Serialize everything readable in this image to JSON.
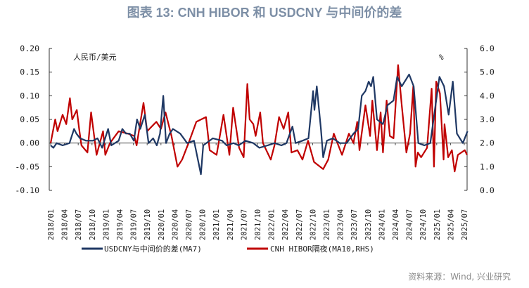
{
  "title": "图表 13: CNH HIBOR 和 USDCNY 与中间价的差",
  "source": "资料来源：Wind, 兴业研究",
  "chart_data": {
    "type": "line",
    "title": "图表 13: CNH HIBOR 和 USDCNY 与中间价的差",
    "left_axis": {
      "label": "人民币/美元",
      "ylim": [
        -0.1,
        0.2
      ],
      "ticks": [
        "0.20",
        "0.15",
        "0.10",
        "0.05",
        "0.00",
        "-0.05",
        "-0.10"
      ]
    },
    "right_axis": {
      "label": "%",
      "ylim": [
        0.0,
        6.0
      ],
      "ticks": [
        "6.0",
        "5.0",
        "4.0",
        "3.0",
        "2.0",
        "1.0",
        "0.0"
      ]
    },
    "x_ticks": [
      "2018/01",
      "2018/04",
      "2018/07",
      "2018/10",
      "2019/01",
      "2019/04",
      "2019/07",
      "2019/10",
      "2020/01",
      "2020/04",
      "2020/07",
      "2020/10",
      "2021/01",
      "2021/04",
      "2021/07",
      "2021/10",
      "2022/01",
      "2022/04",
      "2022/07",
      "2022/10",
      "2023/01",
      "2023/04",
      "2023/07",
      "2023/10",
      "2024/01",
      "2024/04",
      "2024/07",
      "2024/10",
      "2025/01",
      "2025/04",
      "2025/07"
    ],
    "grid": false,
    "legend": "bottom",
    "series": [
      {
        "name": "USDCNY与中间价的差(MA7)",
        "axis": "left",
        "color": "#1f3864",
        "x": [
          "2018-01-01",
          "2018-01-19",
          "2018-02-10",
          "2018-03-19",
          "2018-05-04",
          "2018-06-04",
          "2018-06-19",
          "2018-07-13",
          "2018-08-22",
          "2018-10-07",
          "2018-11-07",
          "2018-12-07",
          "2019-01-16",
          "2019-02-07",
          "2019-03-25",
          "2019-04-19",
          "2019-05-13",
          "2019-06-07",
          "2019-07-04",
          "2019-07-25",
          "2019-08-16",
          "2019-09-16",
          "2019-10-10",
          "2019-11-10",
          "2019-12-04",
          "2019-12-25",
          "2020-01-16",
          "2020-02-04",
          "2020-02-28",
          "2020-03-19",
          "2020-05-07",
          "2020-06-22",
          "2020-08-07",
          "2020-09-22",
          "2020-10-07",
          "2020-12-10",
          "2021-02-10",
          "2021-03-10",
          "2021-04-25",
          "2021-05-28",
          "2021-07-13",
          "2021-09-04",
          "2021-10-13",
          "2021-12-07",
          "2022-01-22",
          "2022-03-07",
          "2022-04-10",
          "2022-05-19",
          "2022-06-10",
          "2022-07-25",
          "2022-09-04",
          "2022-10-04",
          "2022-10-13",
          "2022-10-28",
          "2022-11-25",
          "2022-12-10",
          "2023-01-04",
          "2023-02-13",
          "2023-03-28",
          "2023-05-13",
          "2023-06-28",
          "2023-07-28",
          "2023-08-22",
          "2023-09-16",
          "2023-10-07",
          "2023-10-22",
          "2023-11-07",
          "2023-12-01",
          "2024-01-10",
          "2024-02-10",
          "2024-03-19",
          "2024-04-13",
          "2024-05-13",
          "2024-07-01",
          "2024-08-01",
          "2024-09-01",
          "2024-10-10",
          "2024-11-19",
          "2024-12-19",
          "2025-01-19",
          "2025-02-19",
          "2025-03-19",
          "2025-04-16",
          "2025-05-13",
          "2025-06-22",
          "2025-07-22"
        ],
        "y": [
          -0.005,
          -0.01,
          0.0,
          -0.005,
          0.0,
          0.03,
          0.02,
          0.01,
          0.005,
          0.005,
          0.01,
          -0.01,
          0.03,
          -0.005,
          0.005,
          0.03,
          0.02,
          0.02,
          0.005,
          0.05,
          0.03,
          0.06,
          0.0,
          0.01,
          -0.005,
          0.02,
          0.1,
          0.0,
          0.02,
          0.03,
          0.02,
          0.0,
          0.005,
          -0.066,
          -0.005,
          0.01,
          0.005,
          -0.005,
          0.0,
          -0.005,
          0.005,
          0.0,
          -0.01,
          -0.005,
          0.0,
          -0.005,
          0.0,
          0.035,
          0.0,
          0.005,
          0.01,
          0.11,
          0.07,
          0.12,
          0.03,
          -0.03,
          0.005,
          0.01,
          0.0,
          0.0,
          0.02,
          0.03,
          0.1,
          0.11,
          0.13,
          0.12,
          0.14,
          0.05,
          0.04,
          0.08,
          0.09,
          0.14,
          0.12,
          0.145,
          0.12,
          0.0,
          -0.005,
          0.0,
          0.07,
          0.14,
          0.12,
          0.06,
          0.13,
          0.02,
          0.0,
          0.025
        ]
      },
      {
        "name": "CNH HIBOR隔夜(MA10,RHS)",
        "axis": "right",
        "color": "#c00000",
        "x": [
          "2018-01-01",
          "2018-02-01",
          "2018-02-16",
          "2018-03-19",
          "2018-04-13",
          "2018-05-07",
          "2018-05-22",
          "2018-06-07",
          "2018-06-22",
          "2018-07-07",
          "2018-07-22",
          "2018-09-01",
          "2018-09-25",
          "2018-11-01",
          "2018-12-13",
          "2018-12-28",
          "2019-01-28",
          "2019-03-25",
          "2019-05-25",
          "2019-07-07",
          "2019-07-22",
          "2019-09-07",
          "2019-10-01",
          "2019-11-16",
          "2019-12-01",
          "2020-01-01",
          "2020-02-01",
          "2020-03-10",
          "2020-04-19",
          "2020-05-19",
          "2020-07-07",
          "2020-08-22",
          "2020-10-25",
          "2020-11-19",
          "2021-01-04",
          "2021-02-19",
          "2021-03-28",
          "2021-04-22",
          "2021-06-01",
          "2021-07-01",
          "2021-07-25",
          "2021-08-10",
          "2021-09-04",
          "2021-09-19",
          "2021-10-19",
          "2021-11-07",
          "2021-12-28",
          "2022-01-22",
          "2022-02-22",
          "2022-03-22",
          "2022-04-22",
          "2022-05-13",
          "2022-06-22",
          "2022-07-25",
          "2022-09-01",
          "2022-10-10",
          "2022-12-10",
          "2023-01-13",
          "2023-02-19",
          "2023-04-13",
          "2023-05-28",
          "2023-06-28",
          "2023-07-22",
          "2023-08-07",
          "2023-09-16",
          "2023-10-16",
          "2023-11-01",
          "2023-12-01",
          "2023-12-25",
          "2024-01-10",
          "2024-02-04",
          "2024-02-25",
          "2024-03-19",
          "2024-04-19",
          "2024-05-13",
          "2024-06-13",
          "2024-07-07",
          "2024-07-28",
          "2024-08-13",
          "2024-08-28",
          "2024-09-19",
          "2024-10-28",
          "2024-11-28",
          "2024-12-13",
          "2024-12-28",
          "2025-01-22",
          "2025-02-16",
          "2025-02-22",
          "2025-03-16",
          "2025-04-10",
          "2025-04-28",
          "2025-05-19",
          "2025-07-04",
          "2025-07-19"
        ],
        "y": [
          2.0,
          3.0,
          2.5,
          3.2,
          2.8,
          3.9,
          3.0,
          3.2,
          3.4,
          2.6,
          1.9,
          1.6,
          3.3,
          1.5,
          2.5,
          1.5,
          2.0,
          2.5,
          2.4,
          2.3,
          1.9,
          3.7,
          2.5,
          2.8,
          2.9,
          2.6,
          3.3,
          2.3,
          1.0,
          1.3,
          2.1,
          2.9,
          3.1,
          1.7,
          1.5,
          3.2,
          1.5,
          3.5,
          1.8,
          1.4,
          4.5,
          3.0,
          2.8,
          2.3,
          3.3,
          2.0,
          1.3,
          1.9,
          3.1,
          2.6,
          3.3,
          1.6,
          1.7,
          1.3,
          2.1,
          1.2,
          0.9,
          1.3,
          2.4,
          1.5,
          2.4,
          2.0,
          2.9,
          1.7,
          3.6,
          2.3,
          3.8,
          1.7,
          3.3,
          1.6,
          3.8,
          2.3,
          2.2,
          5.3,
          3.6,
          1.6,
          2.4,
          4.4,
          1.0,
          1.6,
          1.4,
          1.8,
          4.3,
          1.0,
          4.6,
          4.1,
          1.3,
          2.8,
          1.4,
          1.7,
          0.8,
          1.5,
          1.7,
          1.5
        ]
      }
    ]
  }
}
